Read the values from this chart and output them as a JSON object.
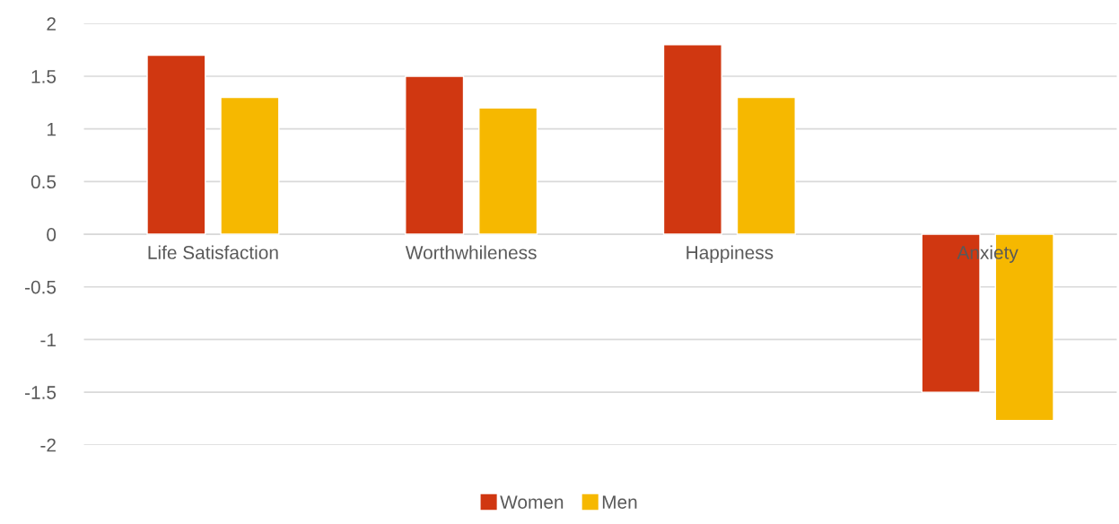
{
  "chart_data": {
    "type": "bar",
    "categories": [
      "Life Satisfaction",
      "Worthwhileness",
      "Happiness",
      "Anxiety"
    ],
    "series": [
      {
        "name": "Women",
        "color": "#d03711",
        "values": [
          1.7,
          1.5,
          1.8,
          -1.5
        ]
      },
      {
        "name": "Men",
        "color": "#f6b800",
        "values": [
          1.3,
          1.2,
          1.3,
          -1.77
        ]
      }
    ],
    "ylim": [
      -2,
      2
    ],
    "yticks": [
      {
        "value": -2,
        "label": "-2"
      },
      {
        "value": -1.5,
        "label": "-1.5"
      },
      {
        "value": -1,
        "label": "-1"
      },
      {
        "value": -0.5,
        "label": "-0.5"
      },
      0,
      0.5,
      1,
      1.5,
      2
    ],
    "grid": "y",
    "legend": "bottom"
  }
}
